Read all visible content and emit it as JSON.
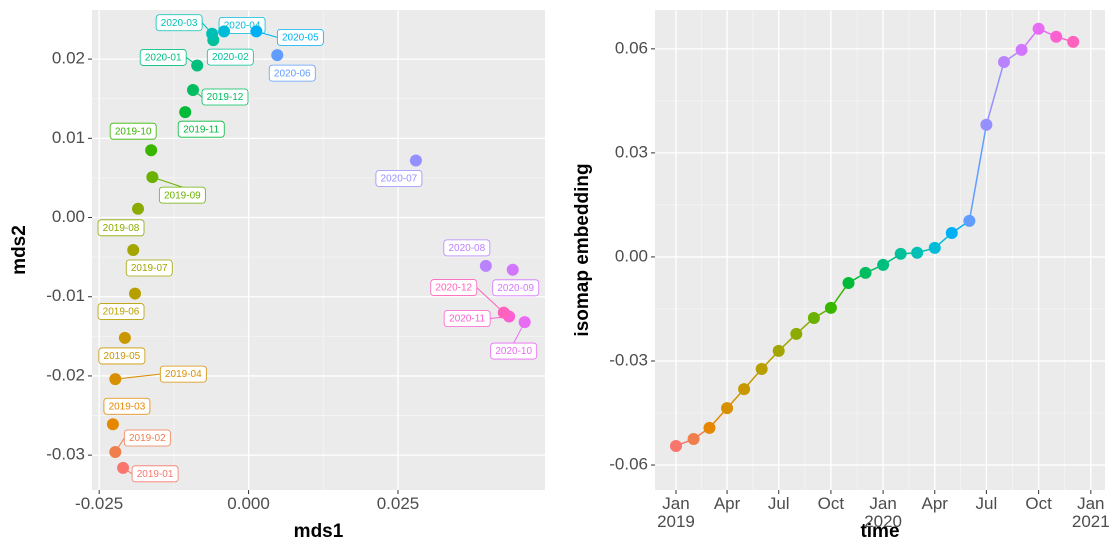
{
  "chart_data": [
    {
      "type": "scatter",
      "xlabel": "mds1",
      "ylabel": "mds2",
      "labels": [
        "2019-01",
        "2019-02",
        "2019-03",
        "2019-04",
        "2019-05",
        "2019-06",
        "2019-07",
        "2019-08",
        "2019-09",
        "2019-10",
        "2019-11",
        "2019-12",
        "2020-01",
        "2020-02",
        "2020-03",
        "2020-04",
        "2020-05",
        "2020-06",
        "2020-07",
        "2020-08",
        "2020-09",
        "2020-10",
        "2020-11",
        "2020-12"
      ],
      "x": [
        -0.021,
        -0.0223,
        -0.0227,
        -0.0223,
        -0.0207,
        -0.019,
        -0.0193,
        -0.0185,
        -0.0161,
        -0.0163,
        -0.0106,
        -0.0093,
        -0.0086,
        -0.0059,
        -0.0061,
        -0.0041,
        0.0013,
        0.0048,
        0.028,
        0.0397,
        0.0442,
        0.0462,
        0.0436,
        0.0427
      ],
      "y": [
        -0.0316,
        -0.0296,
        -0.0261,
        -0.0204,
        -0.0152,
        -0.0096,
        -0.0041,
        0.0011,
        0.0051,
        0.0085,
        0.0133,
        0.0161,
        0.0192,
        0.0224,
        0.0232,
        0.0235,
        0.0235,
        0.0205,
        0.0072,
        -0.0061,
        -0.0066,
        -0.0132,
        -0.0125,
        -0.012
      ],
      "colors": [
        "#F8766D",
        "#F07E4D",
        "#E58700",
        "#D89000",
        "#C99800",
        "#B79F00",
        "#A3A500",
        "#8BAB00",
        "#6BB100",
        "#39B600",
        "#00BA38",
        "#00BD5F",
        "#00BF7D",
        "#00C19A",
        "#00C0B5",
        "#00BCD8",
        "#00B0F6",
        "#619CFF",
        "#9590FF",
        "#B983FF",
        "#D376FF",
        "#E76BF3",
        "#FD61D1",
        "#FF62BC"
      ],
      "xlim": [
        -0.0262,
        0.0496
      ],
      "xticks": [
        -0.025,
        {
          "value": 0,
          "label": "0.000"
        },
        0.025
      ],
      "ylim": [
        -0.0344,
        0.0262
      ],
      "yticks": [
        -0.03,
        -0.02,
        -0.01,
        {
          "value": 0,
          "label": "0.00"
        },
        0.01,
        0.02
      ],
      "grid": true
    },
    {
      "type": "line",
      "xlabel": "time",
      "ylabel": "isomap embedding",
      "x": [
        "2019-01-01",
        "2019-02-01",
        "2019-03-01",
        "2019-04-01",
        "2019-05-01",
        "2019-06-01",
        "2019-07-01",
        "2019-08-01",
        "2019-09-01",
        "2019-10-01",
        "2019-11-01",
        "2019-12-01",
        "2020-01-01",
        "2020-02-01",
        "2020-03-01",
        "2020-04-01",
        "2020-05-01",
        "2020-06-01",
        "2020-07-01",
        "2020-08-01",
        "2020-09-01",
        "2020-10-01",
        "2020-11-01",
        "2020-12-01"
      ],
      "values": [
        -0.0545,
        -0.0525,
        -0.0493,
        -0.0436,
        -0.0381,
        -0.0323,
        -0.0271,
        -0.0222,
        -0.0176,
        -0.0147,
        -0.0075,
        -0.0046,
        -0.0023,
        0.0009,
        0.0012,
        0.0026,
        0.0069,
        0.0104,
        0.0381,
        0.0562,
        0.0597,
        0.0658,
        0.0635,
        0.062
      ],
      "colors": [
        "#F8766D",
        "#F07E4D",
        "#E58700",
        "#D89000",
        "#C99800",
        "#B79F00",
        "#A3A500",
        "#8BAB00",
        "#6BB100",
        "#39B600",
        "#00BA38",
        "#00BD5F",
        "#00BF7D",
        "#00C19A",
        "#00C0B5",
        "#00BCD8",
        "#00B0F6",
        "#619CFF",
        "#9590FF",
        "#B983FF",
        "#D376FF",
        "#E76BF3",
        "#FD61D1",
        "#FF62BC"
      ],
      "xlim": [
        "2018-11-25",
        "2021-01-26"
      ],
      "xticks": [
        {
          "value": "2019-01-01",
          "label": "Jan\n2019"
        },
        {
          "value": "2019-04-01",
          "label": "Apr"
        },
        {
          "value": "2019-07-01",
          "label": "Jul"
        },
        {
          "value": "2019-10-01",
          "label": "Oct"
        },
        {
          "value": "2020-01-01",
          "label": "Jan\n2020"
        },
        {
          "value": "2020-04-01",
          "label": "Apr"
        },
        {
          "value": "2020-07-01",
          "label": "Jul"
        },
        {
          "value": "2020-10-01",
          "label": "Oct"
        },
        {
          "value": "2021-01-01",
          "label": "Jan\n2021"
        }
      ],
      "ylim": [
        -0.0672,
        0.0712
      ],
      "yticks": [
        -0.06,
        -0.03,
        {
          "value": 0,
          "label": "0.00"
        },
        0.03,
        0.06
      ],
      "grid": true
    }
  ]
}
